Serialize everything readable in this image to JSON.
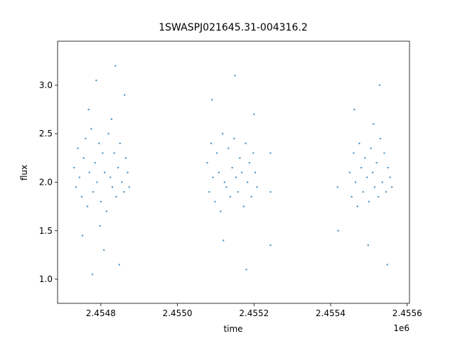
{
  "chart_data": {
    "type": "scatter",
    "title": "1SWASPJ021645.31-004316.2",
    "x_label": "time",
    "y_label": "flux",
    "x_offset_label": "1e6",
    "color": "#1f77b4",
    "xlim": [
      2454687,
      2455606
    ],
    "ylim": [
      0.751,
      3.454
    ],
    "xticks": [
      {
        "value": 2454800,
        "label": "2.4548"
      },
      {
        "value": 2455000,
        "label": "2.4550"
      },
      {
        "value": 2455200,
        "label": "2.4552"
      },
      {
        "value": 2455400,
        "label": "2.4554"
      },
      {
        "value": 2455600,
        "label": "2.4556"
      }
    ],
    "yticks": [
      {
        "value": 1.0,
        "label": "1.0"
      },
      {
        "value": 1.5,
        "label": "1.5"
      },
      {
        "value": 2.0,
        "label": "2.0"
      },
      {
        "value": 2.5,
        "label": "2.5"
      },
      {
        "value": 3.0,
        "label": "3.0"
      }
    ],
    "x": [
      2454730,
      2454735,
      2454740,
      2454744,
      2454750,
      2454755,
      2454760,
      2454765,
      2454770,
      2454775,
      2454780,
      2454785,
      2454790,
      2454795,
      2454800,
      2454805,
      2454810,
      2454815,
      2454820,
      2454825,
      2454830,
      2454835,
      2454840,
      2454845,
      2454850,
      2454855,
      2454860,
      2454865,
      2454870,
      2454874,
      2454752,
      2454768,
      2454788,
      2454808,
      2454828,
      2454848,
      2454862,
      2454778,
      2454798,
      2454838,
      2455078,
      2455083,
      2455088,
      2455093,
      2455098,
      2455103,
      2455108,
      2455113,
      2455118,
      2455123,
      2455128,
      2455133,
      2455138,
      2455143,
      2455148,
      2455153,
      2455158,
      2455163,
      2455168,
      2455173,
      2455178,
      2455183,
      2455188,
      2455193,
      2455198,
      2455203,
      2455208,
      2455090,
      2455120,
      2455150,
      2455180,
      2455200,
      2455243,
      2455243,
      2455243,
      2455418,
      2455420,
      2455450,
      2455455,
      2455460,
      2455465,
      2455470,
      2455475,
      2455480,
      2455485,
      2455490,
      2455495,
      2455500,
      2455505,
      2455510,
      2455515,
      2455520,
      2455525,
      2455530,
      2455535,
      2455540,
      2455545,
      2455550,
      2455555,
      2455560,
      2455462,
      2455498,
      2455528,
      2455548,
      2455512
    ],
    "y": [
      2.15,
      1.95,
      2.35,
      2.05,
      1.85,
      2.25,
      2.45,
      1.75,
      2.1,
      2.55,
      1.9,
      2.2,
      2.0,
      2.4,
      1.8,
      2.3,
      2.1,
      1.7,
      2.5,
      2.05,
      1.95,
      2.3,
      1.85,
      2.15,
      2.4,
      2.0,
      1.9,
      2.25,
      2.1,
      1.95,
      1.45,
      2.75,
      3.05,
      1.3,
      2.65,
      1.15,
      2.9,
      1.05,
      1.55,
      3.2,
      2.2,
      1.9,
      2.4,
      2.05,
      1.8,
      2.3,
      2.1,
      1.7,
      2.5,
      2.0,
      1.95,
      2.35,
      1.85,
      2.15,
      2.45,
      2.05,
      1.9,
      2.25,
      2.1,
      1.75,
      2.4,
      2.0,
      2.2,
      1.85,
      2.3,
      2.1,
      1.95,
      2.85,
      1.4,
      3.1,
      1.1,
      2.7,
      2.3,
      1.9,
      1.35,
      1.95,
      1.5,
      2.1,
      1.85,
      2.3,
      2.0,
      1.75,
      2.4,
      2.15,
      1.9,
      2.25,
      2.05,
      1.8,
      2.35,
      2.1,
      1.95,
      2.2,
      1.85,
      2.45,
      2.0,
      2.3,
      1.9,
      2.15,
      2.05,
      1.95,
      2.75,
      1.35,
      3.0,
      1.15,
      2.6
    ]
  }
}
